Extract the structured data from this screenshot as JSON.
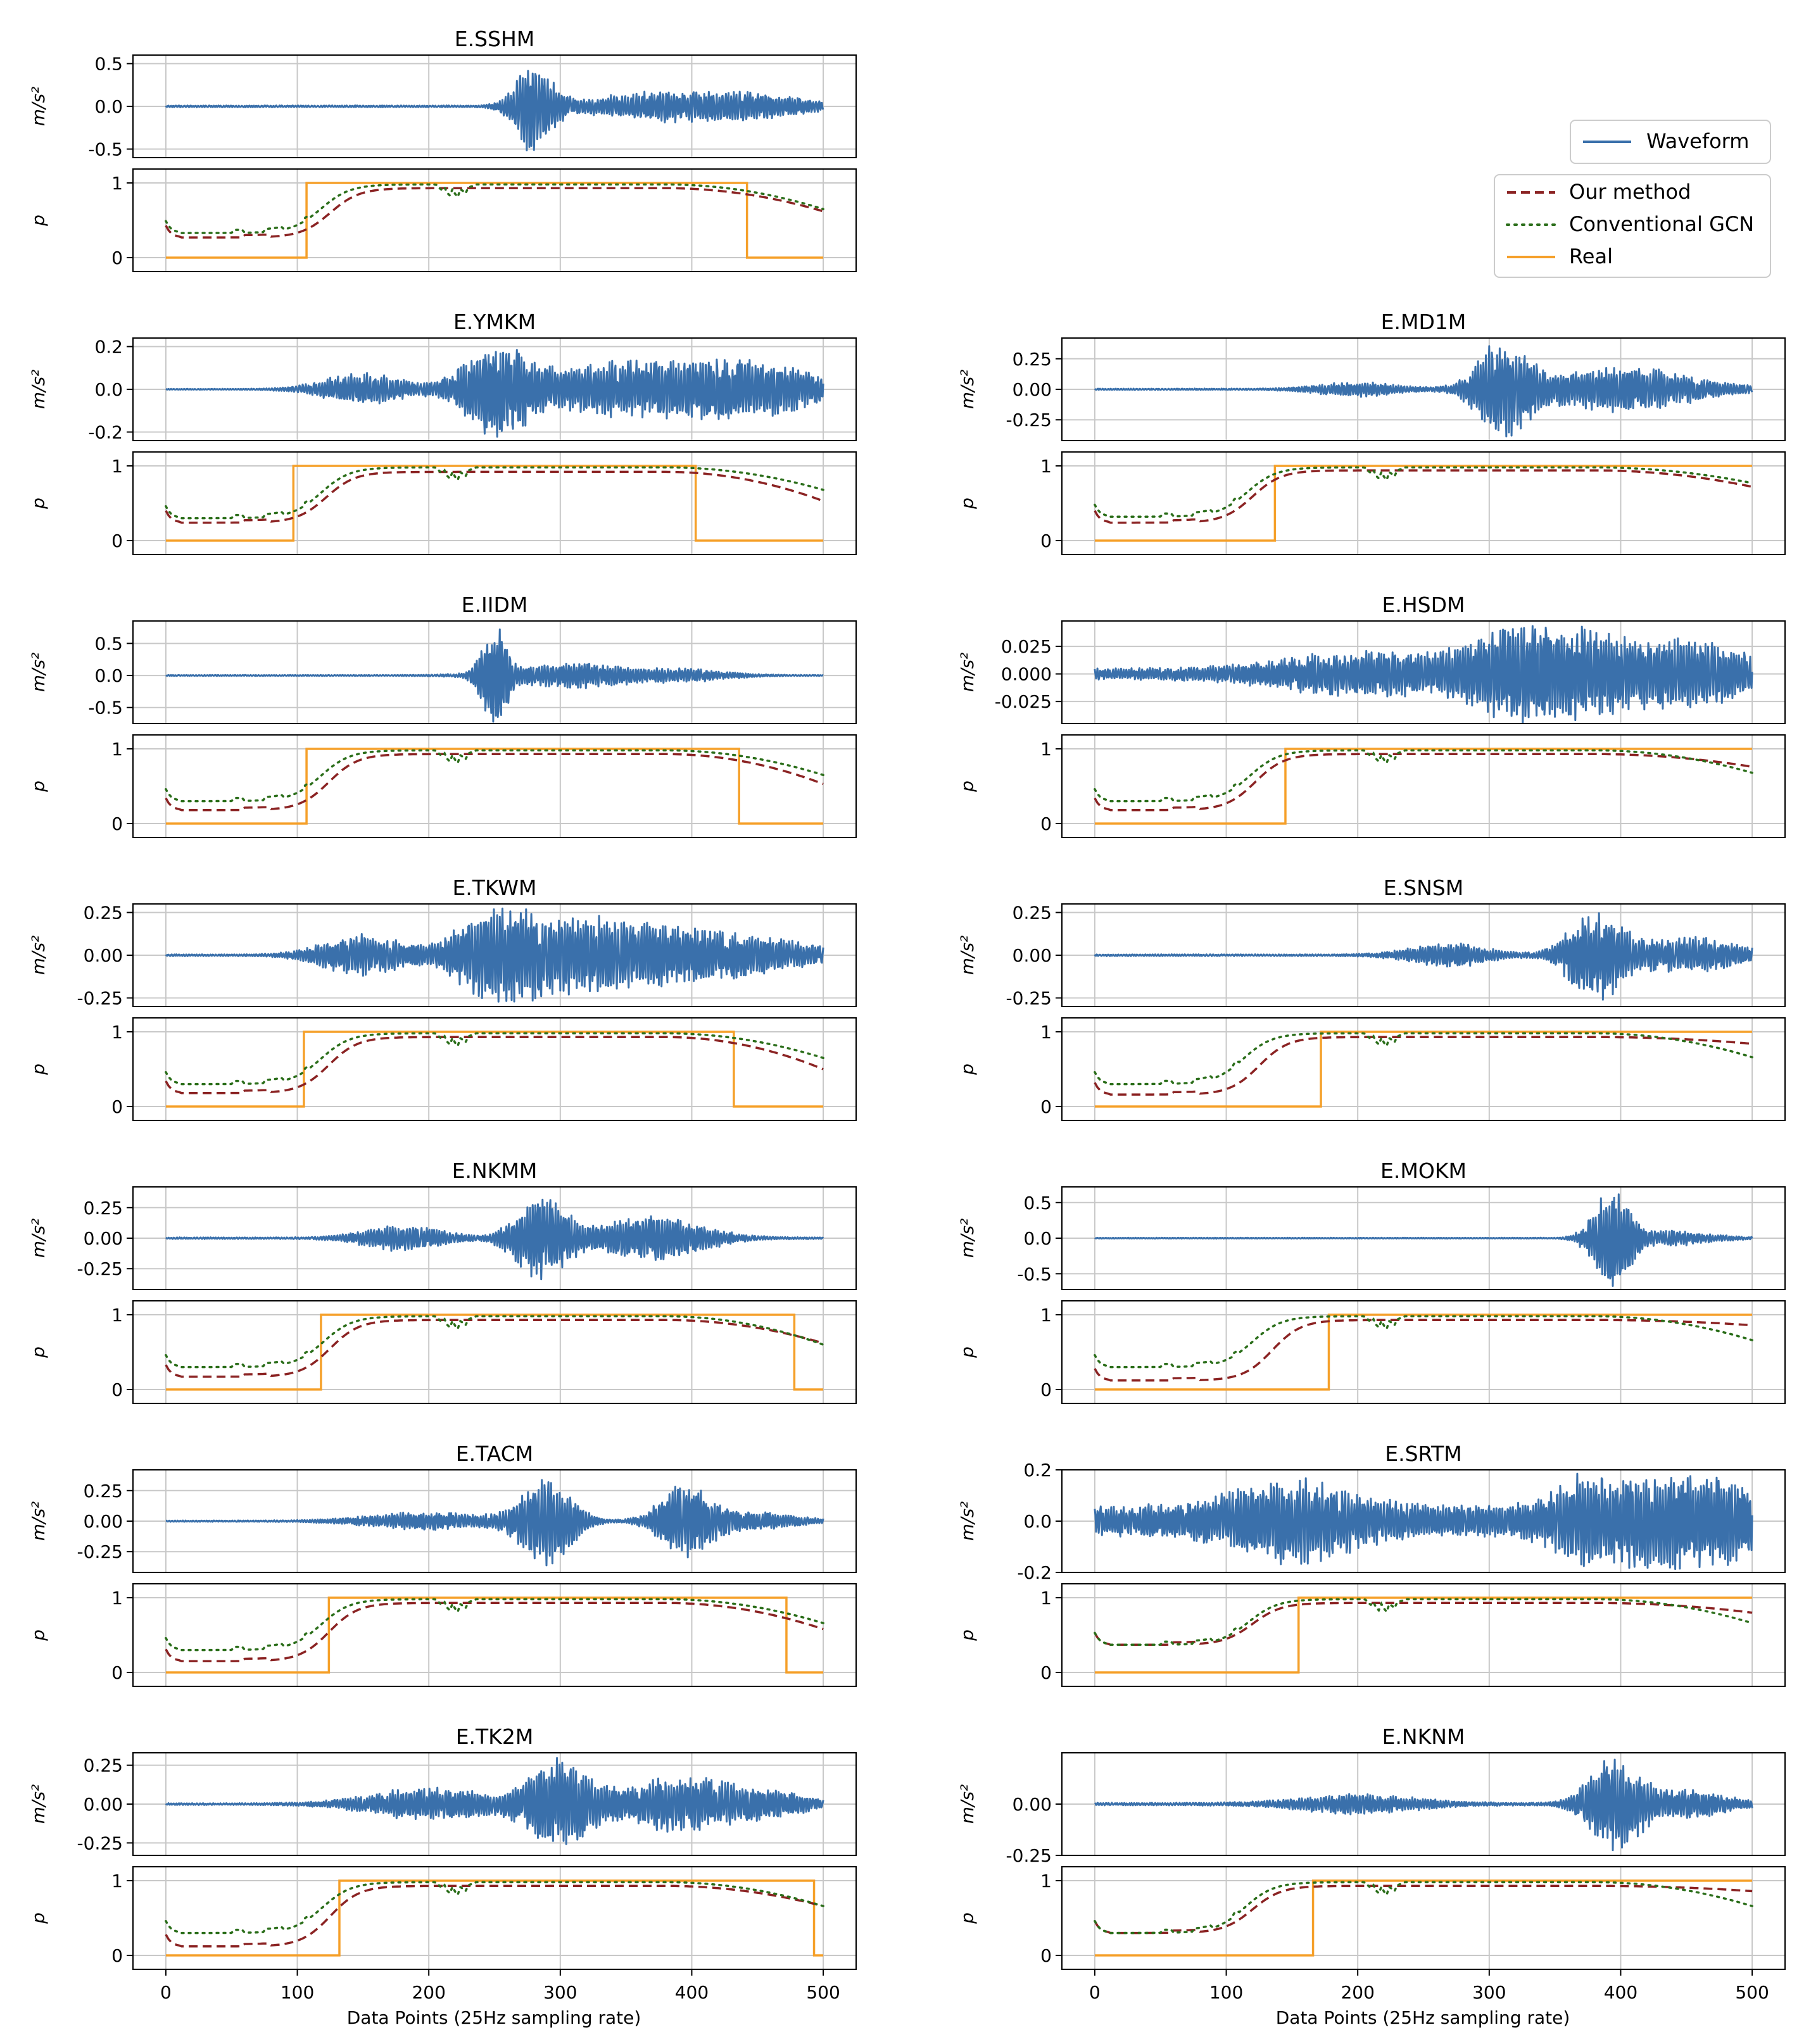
{
  "colors": {
    "waveform": "#3a70ab",
    "our_method": "#8b2323",
    "conventional_gcn": "#2b6e1a",
    "real": "#f5a02a",
    "grid": "#c8c8c8"
  },
  "chart_data": {
    "type": "line",
    "xlabel": "Data Points (25Hz sampling rate)",
    "x_ticks": [
      0,
      100,
      200,
      300,
      400,
      500
    ],
    "xlim": [
      -25,
      525
    ],
    "waveform_ylabel": "m/s²",
    "prob_ylabel": "p",
    "prob_ticks": [
      0,
      1
    ],
    "legend": {
      "waveform": "Waveform",
      "our_method": "Our method",
      "conventional_gcn": "Conventional GCN",
      "real": "Real"
    },
    "panels": [
      {
        "station": "E.SSHM",
        "col": 0,
        "row": 0,
        "wave": {
          "ylim": [
            -0.6,
            0.6
          ],
          "ticks": [
            "0.5",
            "0.0",
            "-0.5"
          ],
          "tick_vals": [
            0.5,
            0.0,
            -0.5
          ],
          "amp": 0.55,
          "noise": 0.02,
          "bursts": [
            [
              280,
              1.0,
              18
            ],
            [
              370,
              0.3,
              60
            ],
            [
              450,
              0.25,
              50
            ]
          ]
        },
        "real": {
          "start": 107,
          "end": 442
        },
        "our": {
          "onset": 125,
          "pre": 0.27,
          "plateau": 0.93,
          "fall_end": 0.62
        },
        "gcn": {
          "onset": 118,
          "pre": 0.33,
          "plateau": 0.98,
          "fall_end": 0.65
        }
      },
      {
        "station": "E.YMKM",
        "col": 0,
        "row": 1,
        "wave": {
          "ylim": [
            -0.24,
            0.24
          ],
          "ticks": [
            "0.2",
            "0.0",
            "-0.2"
          ],
          "tick_vals": [
            0.2,
            0.0,
            -0.2
          ],
          "amp": 0.22,
          "noise": 0.01,
          "bursts": [
            [
              150,
              0.35,
              40
            ],
            [
              250,
              1.0,
              30
            ],
            [
              350,
              0.6,
              80
            ],
            [
              450,
              0.5,
              60
            ]
          ]
        },
        "real": {
          "start": 97,
          "end": 403
        },
        "our": {
          "onset": 122,
          "pre": 0.24,
          "plateau": 0.92,
          "fall_end": 0.53
        },
        "gcn": {
          "onset": 118,
          "pre": 0.3,
          "plateau": 0.98,
          "fall_end": 0.68
        }
      },
      {
        "station": "E.MD1M",
        "col": 1,
        "row": 1,
        "wave": {
          "ylim": [
            -0.42,
            0.42
          ],
          "ticks": [
            "0.25",
            "0.00",
            "-0.25"
          ],
          "tick_vals": [
            0.25,
            0.0,
            -0.25
          ],
          "amp": 0.38,
          "noise": 0.015,
          "bursts": [
            [
              310,
              1.0,
              25
            ],
            [
              400,
              0.5,
              70
            ],
            [
              200,
              0.15,
              40
            ]
          ]
        },
        "real": {
          "start": 137,
          "end": 500
        },
        "our": {
          "onset": 120,
          "pre": 0.24,
          "plateau": 0.94,
          "fall_end": 0.72
        },
        "gcn": {
          "onset": 116,
          "pre": 0.32,
          "plateau": 0.98,
          "fall_end": 0.77
        }
      },
      {
        "station": "E.IIDM",
        "col": 0,
        "row": 2,
        "wave": {
          "ylim": [
            -0.75,
            0.85
          ],
          "ticks": [
            "0.5",
            "0.0",
            "-0.5"
          ],
          "tick_vals": [
            0.5,
            0.0,
            -0.5
          ],
          "amp": 0.78,
          "noise": 0.01,
          "bursts": [
            [
              250,
              1.0,
              12
            ],
            [
              310,
              0.25,
              60
            ],
            [
              400,
              0.1,
              40
            ]
          ]
        },
        "real": {
          "start": 107,
          "end": 436
        },
        "our": {
          "onset": 124,
          "pre": 0.18,
          "plateau": 0.93,
          "fall_end": 0.53
        },
        "gcn": {
          "onset": 118,
          "pre": 0.3,
          "plateau": 0.98,
          "fall_end": 0.65
        }
      },
      {
        "station": "E.HSDM",
        "col": 1,
        "row": 2,
        "wave": {
          "ylim": [
            -0.045,
            0.048
          ],
          "ticks": [
            "0.025",
            "0.000",
            "-0.025"
          ],
          "tick_vals": [
            0.025,
            0.0,
            -0.025
          ],
          "amp": 0.045,
          "noise": 0.12,
          "bursts": [
            [
              200,
              0.35,
              80
            ],
            [
              340,
              1.0,
              60
            ],
            [
              450,
              0.6,
              60
            ]
          ]
        },
        "real": {
          "start": 145,
          "end": 500
        },
        "our": {
          "onset": 122,
          "pre": 0.18,
          "plateau": 0.93,
          "fall_end": 0.76
        },
        "gcn": {
          "onset": 118,
          "pre": 0.3,
          "plateau": 0.98,
          "fall_end": 0.68
        }
      },
      {
        "station": "E.TKWM",
        "col": 0,
        "row": 3,
        "wave": {
          "ylim": [
            -0.3,
            0.3
          ],
          "ticks": [
            "0.25",
            "0.00",
            "-0.25"
          ],
          "tick_vals": [
            0.25,
            0.0,
            -0.25
          ],
          "amp": 0.27,
          "noise": 0.02,
          "bursts": [
            [
              150,
              0.45,
              40
            ],
            [
              250,
              1.0,
              35
            ],
            [
              320,
              0.75,
              60
            ],
            [
              420,
              0.5,
              80
            ]
          ]
        },
        "real": {
          "start": 105,
          "end": 432
        },
        "our": {
          "onset": 124,
          "pre": 0.18,
          "plateau": 0.93,
          "fall_end": 0.5
        },
        "gcn": {
          "onset": 118,
          "pre": 0.3,
          "plateau": 0.98,
          "fall_end": 0.65
        }
      },
      {
        "station": "E.SNSM",
        "col": 1,
        "row": 3,
        "wave": {
          "ylim": [
            -0.3,
            0.3
          ],
          "ticks": [
            "0.25",
            "0.00",
            "-0.25"
          ],
          "tick_vals": [
            0.25,
            0.0,
            -0.25
          ],
          "amp": 0.27,
          "noise": 0.02,
          "bursts": [
            [
              270,
              0.25,
              40
            ],
            [
              380,
              1.0,
              25
            ],
            [
              450,
              0.4,
              50
            ]
          ]
        },
        "real": {
          "start": 172,
          "end": 500
        },
        "our": {
          "onset": 125,
          "pre": 0.16,
          "plateau": 0.93,
          "fall_end": 0.84
        },
        "gcn": {
          "onset": 113,
          "pre": 0.3,
          "plateau": 0.98,
          "fall_end": 0.66
        }
      },
      {
        "station": "E.NKMM",
        "col": 0,
        "row": 4,
        "wave": {
          "ylim": [
            -0.42,
            0.42
          ],
          "ticks": [
            "0.25",
            "0.00",
            "-0.25"
          ],
          "tick_vals": [
            0.25,
            0.0,
            -0.25
          ],
          "amp": 0.34,
          "noise": 0.02,
          "bursts": [
            [
              180,
              0.3,
              40
            ],
            [
              285,
              1.0,
              25
            ],
            [
              370,
              0.55,
              50
            ]
          ]
        },
        "real": {
          "start": 118,
          "end": 478
        },
        "our": {
          "onset": 125,
          "pre": 0.17,
          "plateau": 0.93,
          "fall_end": 0.62
        },
        "gcn": {
          "onset": 120,
          "pre": 0.3,
          "plateau": 0.98,
          "fall_end": 0.6
        }
      },
      {
        "station": "E.MOKM",
        "col": 1,
        "row": 4,
        "wave": {
          "ylim": [
            -0.72,
            0.72
          ],
          "ticks": [
            "0.5",
            "0.0",
            "-0.5"
          ],
          "tick_vals": [
            0.5,
            0.0,
            -0.5
          ],
          "amp": 0.68,
          "noise": 0.01,
          "bursts": [
            [
              393,
              1.0,
              18
            ],
            [
              440,
              0.15,
              40
            ]
          ]
        },
        "real": {
          "start": 178,
          "end": 500
        },
        "our": {
          "onset": 135,
          "pre": 0.12,
          "plateau": 0.93,
          "fall_end": 0.86
        },
        "gcn": {
          "onset": 120,
          "pre": 0.3,
          "plateau": 0.98,
          "fall_end": 0.66
        }
      },
      {
        "station": "E.TACM",
        "col": 0,
        "row": 5,
        "wave": {
          "ylim": [
            -0.42,
            0.42
          ],
          "ticks": [
            "0.25",
            "0.00",
            "-0.25"
          ],
          "tick_vals": [
            0.25,
            0.0,
            -0.25
          ],
          "amp": 0.36,
          "noise": 0.015,
          "bursts": [
            [
              200,
              0.2,
              60
            ],
            [
              290,
              1.0,
              25
            ],
            [
              395,
              0.85,
              25
            ],
            [
              450,
              0.2,
              40
            ]
          ]
        },
        "real": {
          "start": 124,
          "end": 472
        },
        "our": {
          "onset": 124,
          "pre": 0.15,
          "plateau": 0.93,
          "fall_end": 0.58
        },
        "gcn": {
          "onset": 118,
          "pre": 0.3,
          "plateau": 0.98,
          "fall_end": 0.66
        }
      },
      {
        "station": "E.SRTM",
        "col": 1,
        "row": 5,
        "wave": {
          "ylim": [
            -0.2,
            0.2
          ],
          "ticks": [
            "0.2",
            "0.0",
            "-0.2"
          ],
          "tick_vals": [
            0.2,
            0.0,
            -0.2
          ],
          "amp": 0.18,
          "noise": 0.35,
          "bursts": [
            [
              150,
              0.6,
              60
            ],
            [
              390,
              1.0,
              40
            ],
            [
              460,
              0.8,
              50
            ]
          ]
        },
        "real": {
          "start": 155,
          "end": 500
        },
        "our": {
          "onset": 120,
          "pre": 0.37,
          "plateau": 0.93,
          "fall_end": 0.8
        },
        "gcn": {
          "onset": 117,
          "pre": 0.37,
          "plateau": 0.98,
          "fall_end": 0.66
        }
      },
      {
        "station": "E.TK2M",
        "col": 0,
        "row": 6,
        "wave": {
          "ylim": [
            -0.33,
            0.33
          ],
          "ticks": [
            "0.25",
            "0.00",
            "-0.25"
          ],
          "tick_vals": [
            0.25,
            0.0,
            -0.25
          ],
          "amp": 0.3,
          "noise": 0.02,
          "bursts": [
            [
              200,
              0.35,
              60
            ],
            [
              300,
              1.0,
              30
            ],
            [
              390,
              0.6,
              50
            ],
            [
              460,
              0.25,
              40
            ]
          ]
        },
        "real": {
          "start": 132,
          "end": 493
        },
        "our": {
          "onset": 125,
          "pre": 0.12,
          "plateau": 0.93,
          "fall_end": 0.66
        },
        "gcn": {
          "onset": 119,
          "pre": 0.3,
          "plateau": 0.98,
          "fall_end": 0.66
        }
      },
      {
        "station": "E.NKNM",
        "col": 1,
        "row": 6,
        "wave": {
          "ylim": [
            -0.25,
            0.25
          ],
          "ticks": [
            "0.00",
            "-0.25"
          ],
          "tick_vals": [
            0.0,
            -0.25
          ],
          "amp": 0.22,
          "noise": 0.03,
          "bursts": [
            [
              200,
              0.2,
              60
            ],
            [
              395,
              1.0,
              25
            ],
            [
              450,
              0.3,
              40
            ]
          ]
        },
        "real": {
          "start": 166,
          "end": 500
        },
        "our": {
          "onset": 120,
          "pre": 0.3,
          "plateau": 0.93,
          "fall_end": 0.86
        },
        "gcn": {
          "onset": 114,
          "pre": 0.3,
          "plateau": 0.98,
          "fall_end": 0.66
        }
      }
    ]
  }
}
